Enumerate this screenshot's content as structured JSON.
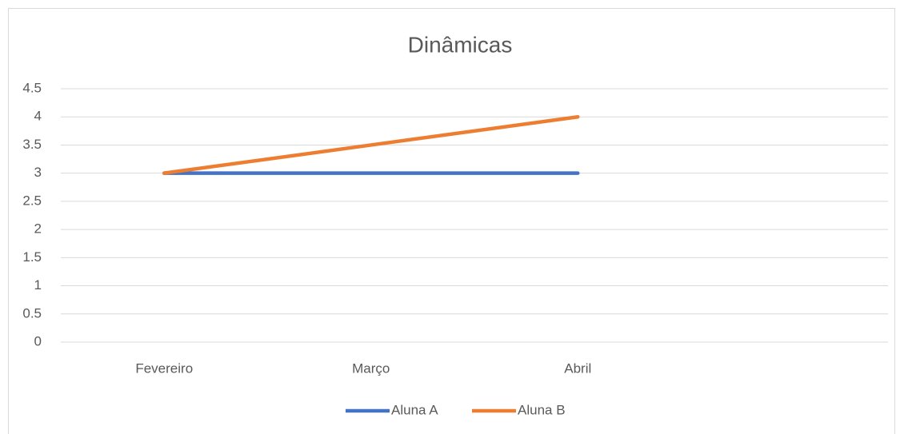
{
  "chart_data": {
    "type": "line",
    "title": "Dinâmicas",
    "categories": [
      "Fevereiro",
      "Março",
      "Abril",
      null
    ],
    "series": [
      {
        "name": "Aluna A",
        "color": "#4472c4",
        "values": [
          3,
          3,
          3,
          null
        ]
      },
      {
        "name": "Aluna B",
        "color": "#ed7d31",
        "values": [
          3,
          3.5,
          4,
          null
        ]
      }
    ],
    "ylim": [
      0,
      4.5
    ],
    "yticks": [
      0,
      0.5,
      1,
      1.5,
      2,
      2.5,
      3,
      3.5,
      4,
      4.5
    ],
    "grid": true,
    "legend": "bottom"
  }
}
